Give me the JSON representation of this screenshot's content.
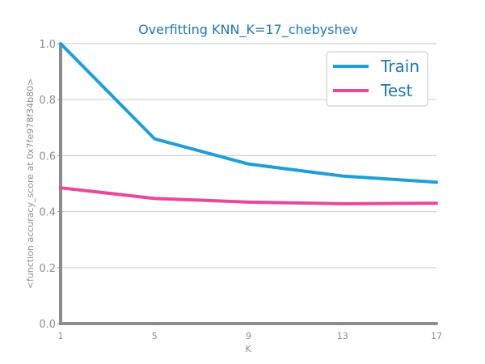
{
  "chart_data": {
    "type": "line",
    "title": "Overfitting KNN_K=17_chebyshev",
    "xlabel": "K",
    "ylabel": "<function accuracy_score at 0x7fe978f34b80>",
    "x": [
      1,
      5,
      9,
      13,
      17
    ],
    "x_tick_labels": [
      "1",
      "5",
      "9",
      "13",
      "17"
    ],
    "ylim": [
      0,
      1
    ],
    "y_tick_labels": [
      "0.0",
      "0.2",
      "0.4",
      "0.6",
      "0.8",
      "1.0"
    ],
    "grid": "horizontal",
    "legend_position": "top-right",
    "series": [
      {
        "name": "Train",
        "color": "#1e9fd6",
        "values": [
          1.0,
          0.66,
          0.57,
          0.527,
          0.505
        ]
      },
      {
        "name": "Test",
        "color": "#e8489a",
        "values": [
          0.485,
          0.447,
          0.434,
          0.428,
          0.43
        ]
      }
    ]
  }
}
